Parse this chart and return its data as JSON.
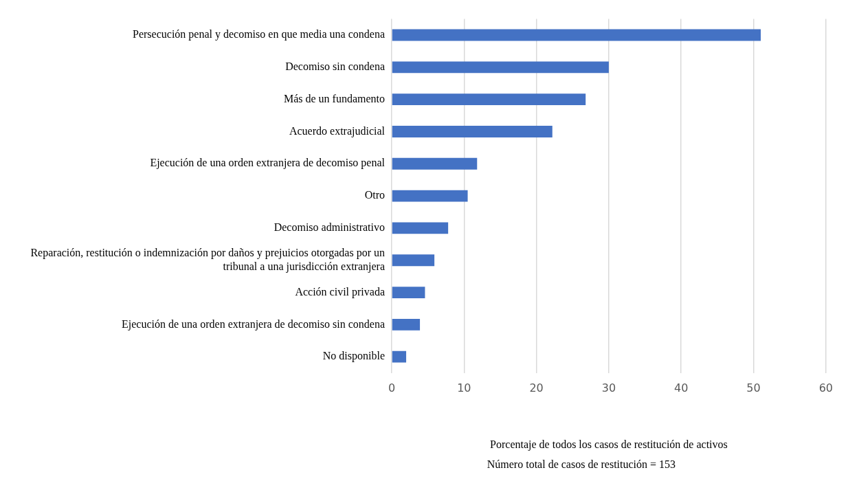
{
  "chart_data": {
    "type": "bar",
    "orientation": "horizontal",
    "categories": [
      "Persecución penal y decomiso en que media una condena",
      "Decomiso sin condena",
      "Más de un fundamento",
      "Acuerdo extrajudicial",
      "Ejecución de una orden extranjera de decomiso penal",
      "Otro",
      "Decomiso administrativo",
      "Reparación, restitución o indemnización por daños y prejuicios otorgadas por un tribunal a una jurisdicción extranjera",
      "Acción civil privada",
      "Ejecución de una orden extranjera de decomiso sin condena",
      "No disponible"
    ],
    "values": [
      51,
      30,
      26.8,
      22.2,
      11.8,
      10.5,
      7.8,
      5.9,
      4.6,
      3.9,
      2
    ],
    "color": "#4472c4",
    "xlim": [
      0,
      60
    ],
    "xticks": [
      0,
      10,
      20,
      30,
      40,
      50,
      60
    ],
    "grid": "x",
    "legend": false,
    "xlabel": "Porcentaje de todos los casos de restitución de activos",
    "annotations": [
      "Número total de casos de restitución = 153"
    ]
  }
}
